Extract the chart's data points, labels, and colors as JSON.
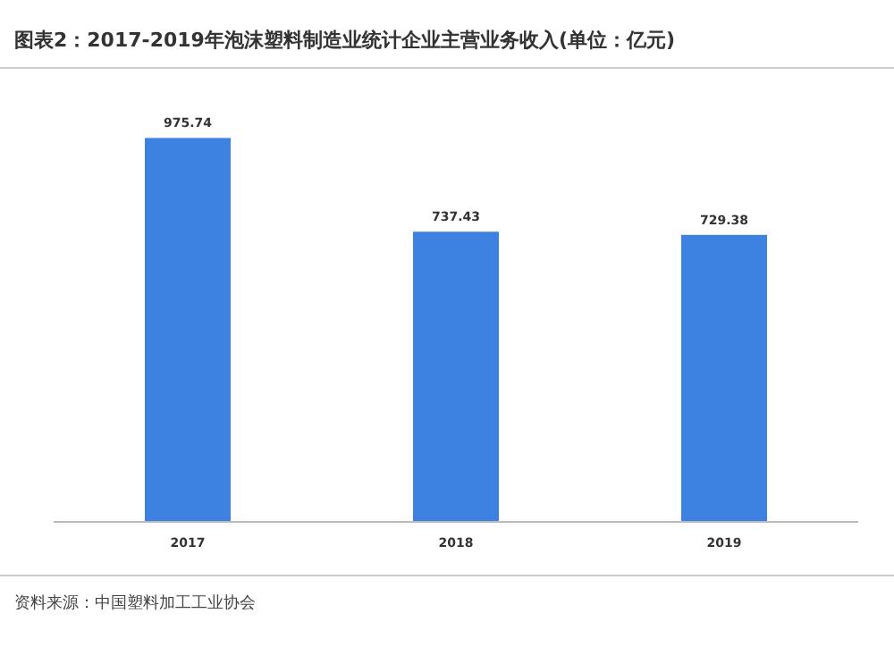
{
  "chart_data": {
    "type": "bar",
    "title": "图表2：2017-2019年泡沫塑料制造业统计企业主营业务收入(单位：亿元)",
    "categories": [
      "2017",
      "2018",
      "2019"
    ],
    "values": [
      975.74,
      737.43,
      729.38
    ],
    "color": "#3d82e0",
    "data_labels": true,
    "annotations": [
      "资料来源：中国塑料加工工业协会"
    ]
  }
}
